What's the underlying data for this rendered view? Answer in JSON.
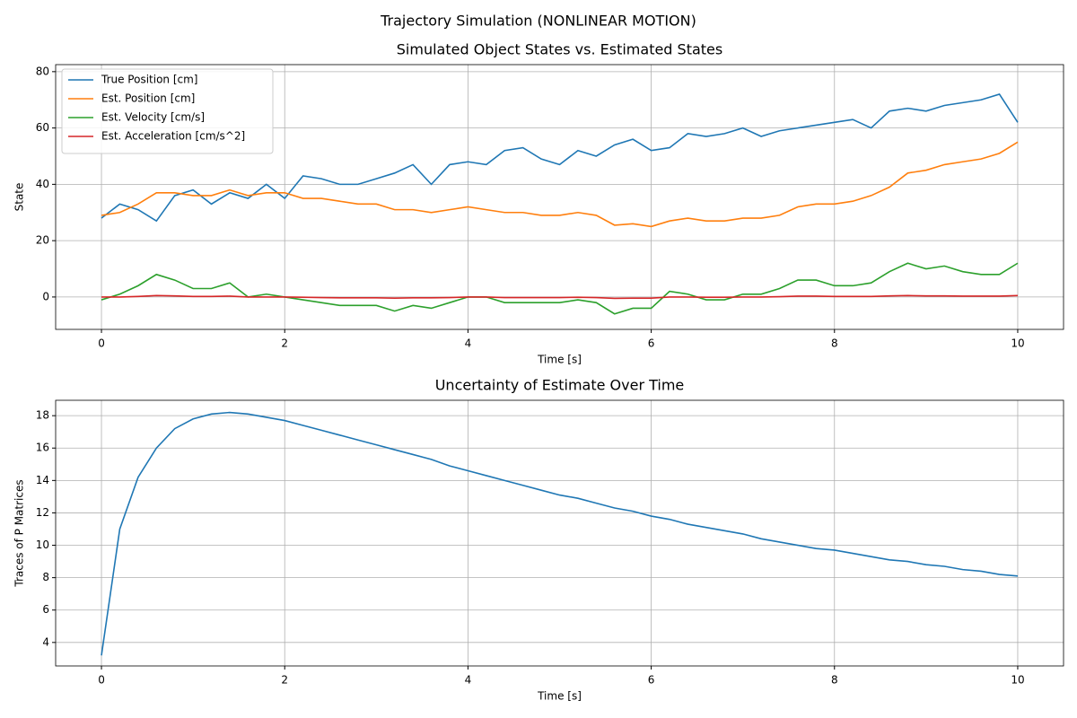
{
  "title": "Trajectory Simulation (NONLINEAR MOTION)",
  "chart_data": [
    {
      "type": "line",
      "title": "Simulated Object States vs. Estimated States",
      "xlabel": "Time [s]",
      "ylabel": "State",
      "x": [
        0,
        0.2,
        0.4,
        0.6,
        0.8,
        1.0,
        1.2,
        1.4,
        1.6,
        1.8,
        2.0,
        2.2,
        2.4,
        2.6,
        2.8,
        3.0,
        3.2,
        3.4,
        3.6,
        3.8,
        4.0,
        4.2,
        4.4,
        4.6,
        4.8,
        5.0,
        5.2,
        5.4,
        5.6,
        5.8,
        6.0,
        6.2,
        6.4,
        6.6,
        6.8,
        7.0,
        7.2,
        7.4,
        7.6,
        7.8,
        8.0,
        8.2,
        8.4,
        8.6,
        8.8,
        9.0,
        9.2,
        9.4,
        9.6,
        9.8,
        10.0
      ],
      "series": [
        {
          "name": "True Position [cm]",
          "color": "#1f77b4",
          "values": [
            28,
            33,
            31,
            27,
            36,
            38,
            33,
            37,
            35,
            40,
            35,
            43,
            42,
            40,
            40,
            42,
            44,
            47,
            40,
            47,
            48,
            47,
            52,
            53,
            49,
            47,
            52,
            50,
            54,
            56,
            52,
            53,
            58,
            57,
            58,
            60,
            57,
            59,
            60,
            61,
            62,
            63,
            60,
            66,
            67,
            66,
            68,
            69,
            70,
            72,
            62
          ]
        },
        {
          "name": "Est. Position [cm]",
          "color": "#ff7f0e",
          "values": [
            29,
            30,
            33,
            37,
            37,
            36,
            36,
            38,
            36,
            37,
            37,
            35,
            35,
            34,
            33,
            33,
            31,
            31,
            30,
            31,
            32,
            31,
            30,
            30,
            29,
            29,
            30,
            29,
            25.5,
            26,
            25,
            27,
            28,
            27,
            27,
            28,
            28,
            29,
            32,
            33,
            33,
            34,
            36,
            39,
            44,
            45,
            47,
            48,
            49,
            51,
            55
          ]
        },
        {
          "name": "Est. Velocity [cm/s]",
          "color": "#2ca02c",
          "values": [
            -1,
            1,
            4,
            8,
            6,
            3,
            3,
            5,
            0,
            1,
            0,
            -1,
            -2,
            -3,
            -3,
            -3,
            -5,
            -3,
            -4,
            -2,
            0,
            0,
            -2,
            -2,
            -2,
            -2,
            -1,
            -2,
            -6,
            -4,
            -4,
            2,
            1,
            -1,
            -1,
            1,
            1,
            3,
            6,
            6,
            4,
            4,
            5,
            9,
            12,
            10,
            11,
            9,
            8,
            8,
            12
          ]
        },
        {
          "name": "Est. Acceleration [cm/s^2]",
          "color": "#d62728",
          "values": [
            0,
            0,
            0.2,
            0.5,
            0.4,
            0.2,
            0.2,
            0.3,
            0,
            0,
            0,
            -0.1,
            -0.2,
            -0.3,
            -0.3,
            -0.3,
            -0.4,
            -0.3,
            -0.3,
            -0.2,
            0,
            0,
            -0.2,
            -0.2,
            -0.2,
            -0.2,
            -0.1,
            -0.2,
            -0.5,
            -0.4,
            -0.4,
            0,
            0,
            -0.1,
            -0.1,
            0,
            0,
            0.1,
            0.3,
            0.3,
            0.2,
            0.2,
            0.2,
            0.4,
            0.5,
            0.4,
            0.4,
            0.3,
            0.3,
            0.3,
            0.5
          ]
        }
      ],
      "xlim": [
        -0.5,
        10.5
      ],
      "xticks": [
        0,
        2,
        4,
        6,
        8,
        10
      ],
      "ylim": [
        -11.5,
        82.5
      ],
      "yticks": [
        0,
        20,
        40,
        60,
        80
      ],
      "grid": true,
      "legend": "upper left"
    },
    {
      "type": "line",
      "title": "Uncertainty of Estimate Over Time",
      "xlabel": "Time [s]",
      "ylabel": "Traces of P Matrices",
      "x": [
        0,
        0.2,
        0.4,
        0.6,
        0.8,
        1.0,
        1.2,
        1.4,
        1.6,
        1.8,
        2.0,
        2.2,
        2.4,
        2.6,
        2.8,
        3.0,
        3.2,
        3.4,
        3.6,
        3.8,
        4.0,
        4.2,
        4.4,
        4.6,
        4.8,
        5.0,
        5.2,
        5.4,
        5.6,
        5.8,
        6.0,
        6.2,
        6.4,
        6.6,
        6.8,
        7.0,
        7.2,
        7.4,
        7.6,
        7.8,
        8.0,
        8.2,
        8.4,
        8.6,
        8.8,
        9.0,
        9.2,
        9.4,
        9.6,
        9.8,
        10.0
      ],
      "series": [
        {
          "color": "#1f77b4",
          "values": [
            3.2,
            11.0,
            14.2,
            16.0,
            17.2,
            17.8,
            18.1,
            18.2,
            18.1,
            17.9,
            17.7,
            17.4,
            17.1,
            16.8,
            16.5,
            16.2,
            15.9,
            15.6,
            15.3,
            14.9,
            14.6,
            14.3,
            14.0,
            13.7,
            13.4,
            13.1,
            12.9,
            12.6,
            12.3,
            12.1,
            11.8,
            11.6,
            11.3,
            11.1,
            10.9,
            10.7,
            10.4,
            10.2,
            10.0,
            9.8,
            9.7,
            9.5,
            9.3,
            9.1,
            9.0,
            8.8,
            8.7,
            8.5,
            8.4,
            8.2,
            8.1
          ]
        }
      ],
      "xlim": [
        -0.5,
        10.5
      ],
      "xticks": [
        0,
        2,
        4,
        6,
        8,
        10
      ],
      "ylim": [
        2.55,
        18.95
      ],
      "yticks": [
        4,
        6,
        8,
        10,
        12,
        14,
        16,
        18
      ],
      "grid": true
    }
  ]
}
